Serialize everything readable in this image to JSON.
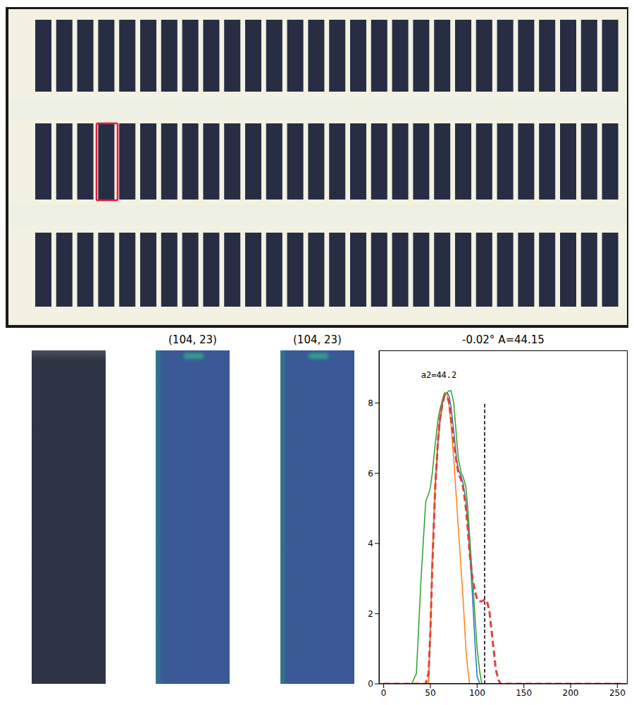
{
  "panel_titles": [
    null,
    "(104, 23)",
    "(104, 23)"
  ],
  "chart_data": {
    "type": "line",
    "title": "-0.02° A=44.15",
    "x": [
      0,
      30,
      35,
      40,
      45,
      48,
      50,
      52,
      55,
      58,
      60,
      63,
      65,
      68,
      70,
      72,
      75,
      78,
      80,
      83,
      85,
      88,
      90,
      92,
      95,
      98,
      100,
      103,
      105,
      108,
      110,
      113,
      115,
      118,
      120,
      123,
      125,
      130,
      150,
      200,
      255
    ],
    "series": [
      {
        "color": "#1f77b4",
        "line_style": "solid",
        "values": [
          0,
          0,
          0,
          0,
          0,
          0,
          1.5,
          3.5,
          5.5,
          6.8,
          7.4,
          8.0,
          8.2,
          8.3,
          8.2,
          7.9,
          7.2,
          6.4,
          6.1,
          5.9,
          5.7,
          5.2,
          4.6,
          3.8,
          2.5,
          1.0,
          0.2,
          0,
          0,
          0,
          0,
          0,
          0,
          0,
          0,
          0,
          0,
          0,
          0,
          0,
          0
        ]
      },
      {
        "color": "#ff7f0e",
        "line_style": "solid",
        "values": [
          0,
          0,
          0,
          0,
          0,
          0,
          1.6,
          3.6,
          5.7,
          7.0,
          7.6,
          8.1,
          8.3,
          8.25,
          7.9,
          7.4,
          6.4,
          5.2,
          4.4,
          3.2,
          2.4,
          1.0,
          0.4,
          0,
          0,
          0,
          0,
          0,
          0,
          0,
          0,
          0,
          0,
          0,
          0,
          0,
          0,
          0,
          0,
          0,
          0
        ]
      },
      {
        "color": "#2ca02c",
        "line_style": "solid",
        "values": [
          0,
          0,
          0.3,
          3.0,
          5.2,
          5.4,
          5.6,
          6.0,
          6.8,
          7.5,
          7.8,
          8.1,
          8.25,
          8.3,
          8.35,
          8.35,
          8.0,
          7.0,
          6.4,
          6.0,
          5.9,
          5.6,
          5.0,
          4.2,
          3.0,
          1.8,
          1.0,
          0.3,
          0,
          0,
          0,
          0,
          0,
          0,
          0,
          0,
          0,
          0,
          0,
          0,
          0
        ]
      },
      {
        "color": "#e0403c",
        "line_style": "dashed",
        "values": [
          0,
          0,
          0,
          0,
          0,
          0.3,
          1.5,
          3.3,
          5.5,
          6.9,
          7.5,
          8.0,
          8.2,
          8.2,
          8.0,
          7.6,
          6.9,
          6.3,
          6.0,
          5.8,
          5.6,
          5.0,
          4.4,
          3.7,
          3.0,
          2.6,
          2.4,
          2.35,
          2.35,
          2.4,
          2.4,
          2.1,
          1.6,
          0.9,
          0.4,
          0.1,
          0,
          0,
          0,
          0,
          0
        ]
      }
    ],
    "vlines": [
      {
        "x": 108,
        "ymin": 0,
        "ymax": 8,
        "color": "#000000",
        "line_style": "dashed"
      }
    ],
    "annotations": [
      {
        "text": "a2=44.2",
        "x": 40,
        "y": 8.8
      }
    ],
    "xlim": [
      -5,
      261
    ],
    "ylim": [
      0,
      9.5
    ],
    "xticks": [
      0,
      50,
      100,
      150,
      200,
      250
    ],
    "yticks": [
      0,
      2,
      4,
      6,
      8
    ],
    "grid": false
  }
}
